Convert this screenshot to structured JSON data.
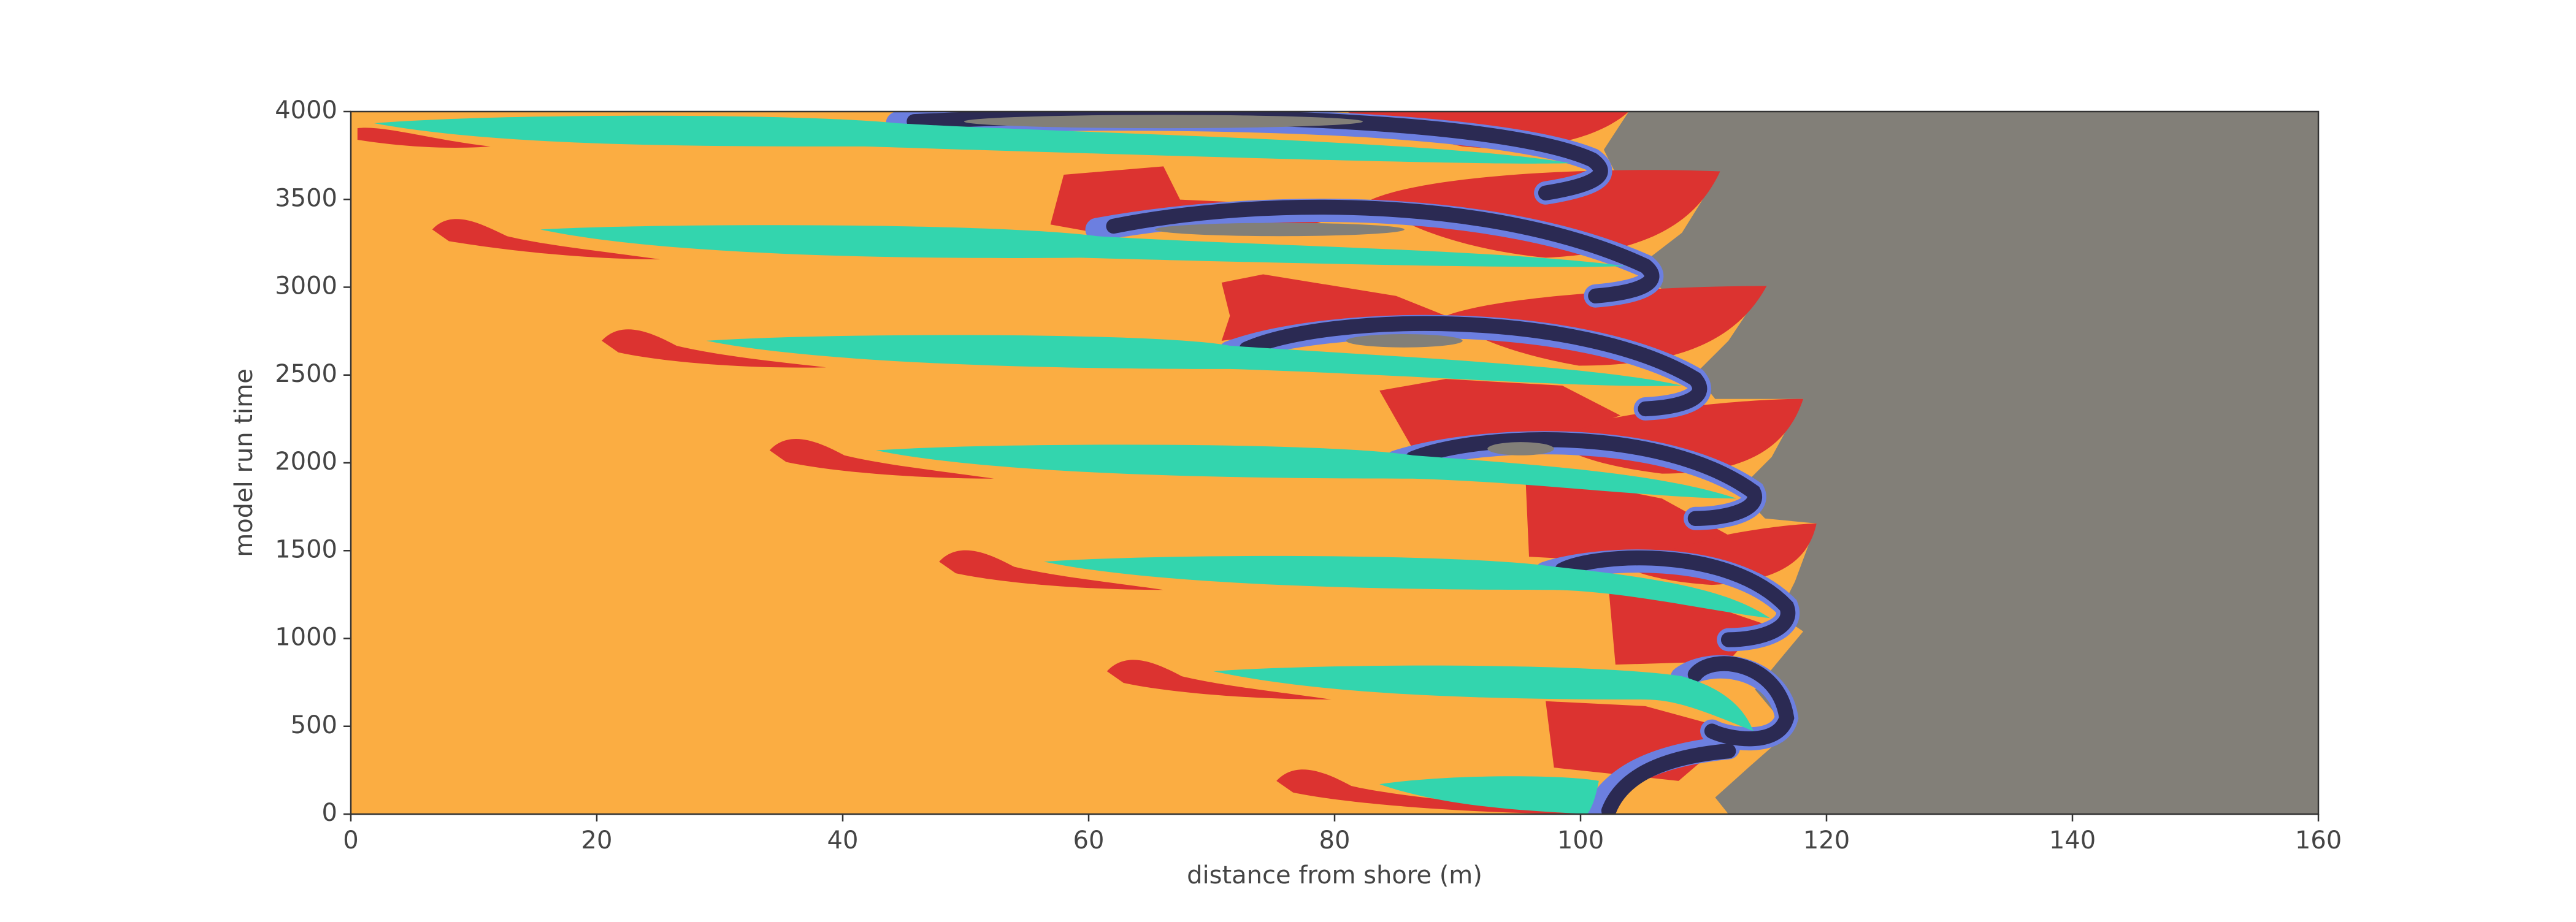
{
  "chart_data": {
    "type": "image",
    "xlabel": "distance from shore (m)",
    "ylabel": "model run time",
    "xlim": [
      0,
      160
    ],
    "ylim": [
      0,
      4000
    ],
    "xticks": [
      0,
      20,
      40,
      60,
      80,
      100,
      120,
      140,
      160
    ],
    "yticks": [
      0,
      500,
      1000,
      1500,
      2000,
      2500,
      3000,
      3500,
      4000
    ]
  }
}
